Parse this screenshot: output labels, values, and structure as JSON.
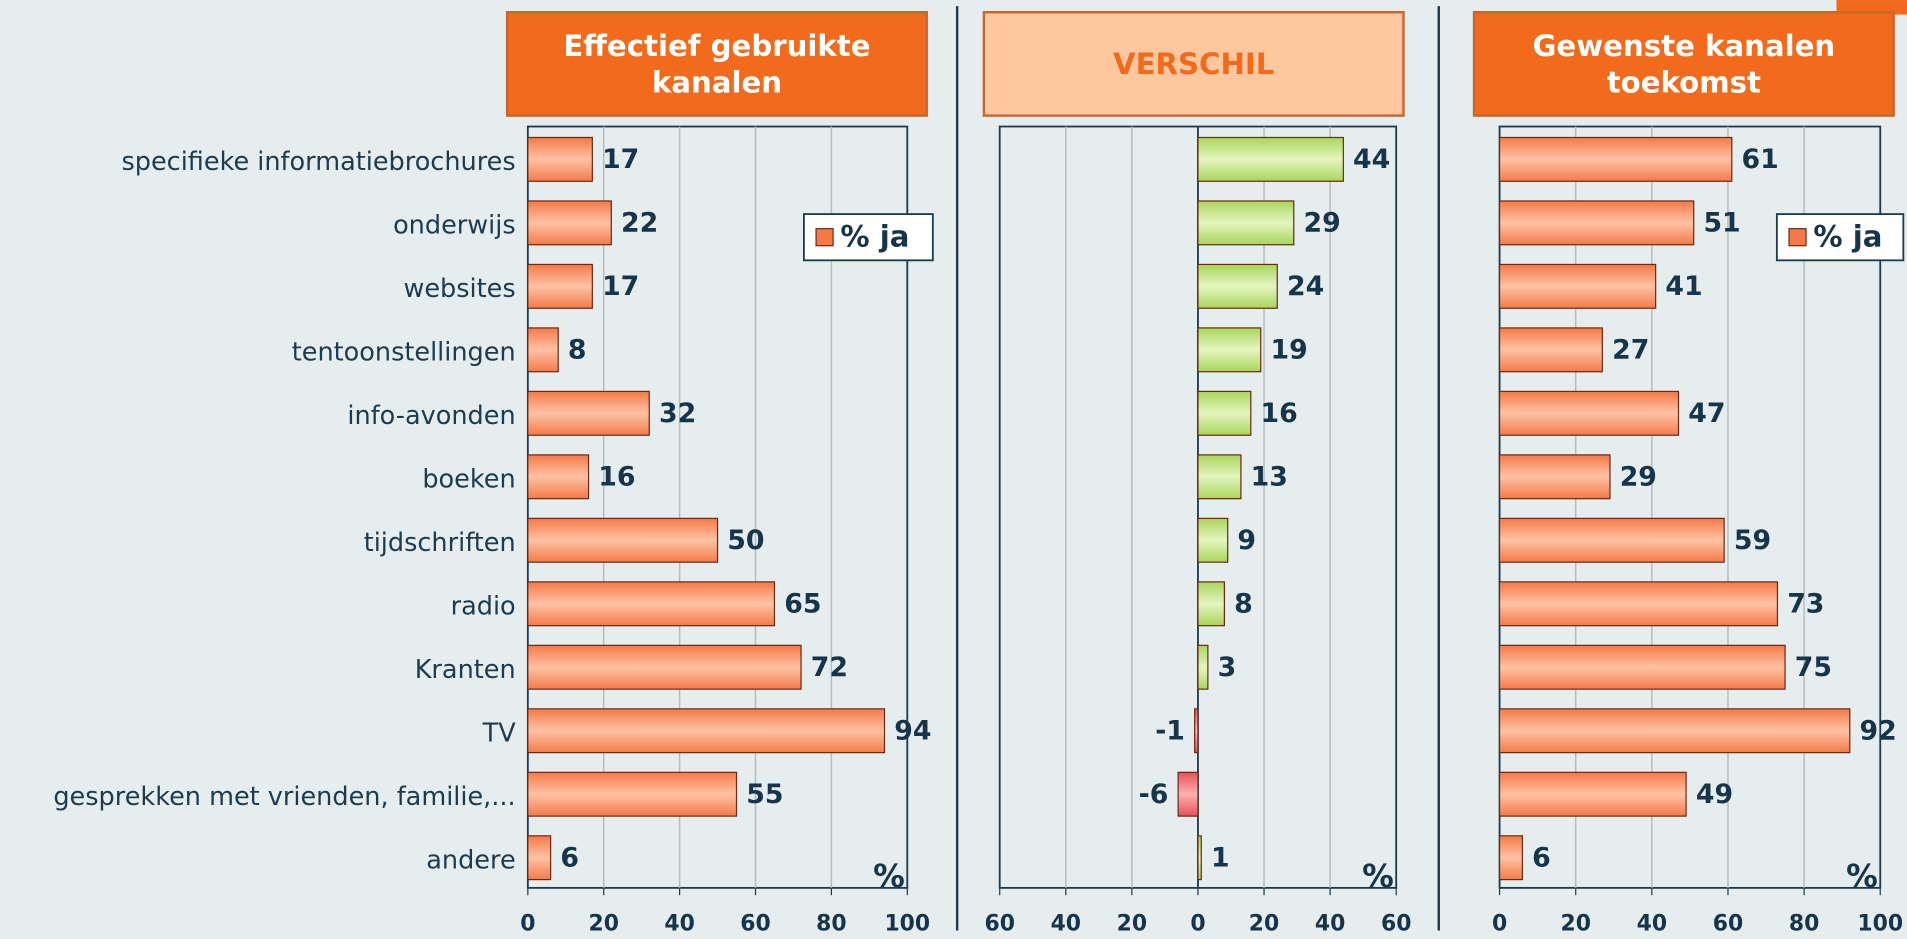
{
  "chart_data": [
    {
      "type": "bar",
      "orientation": "horizontal",
      "title": "Effectief gebruikte kanalen",
      "categories": [
        "specifieke informatiebrochures",
        "onderwijs",
        "websites",
        "tentoonstellingen",
        "info-avonden",
        "boeken",
        "tijdschriften",
        "radio",
        "Kranten",
        "TV",
        "gesprekken met vrienden, familie,...",
        "andere"
      ],
      "series": [
        {
          "name": "% ja",
          "color": "#f47a48",
          "values": [
            17,
            22,
            17,
            8,
            32,
            16,
            50,
            65,
            72,
            94,
            55,
            6
          ]
        }
      ],
      "xlim": [
        0,
        100
      ],
      "xticks": [
        0,
        20,
        40,
        60,
        80,
        100
      ],
      "unit_label": "%",
      "grid": true,
      "legend": "upper right"
    },
    {
      "type": "bar",
      "orientation": "horizontal",
      "title": "VERSCHIL",
      "series": [
        {
          "color": "#a8d65a",
          "negative_color": "#e8505a",
          "values": [
            44,
            29,
            24,
            19,
            16,
            13,
            9,
            8,
            3,
            -1,
            -6,
            1
          ]
        }
      ],
      "xlim": [
        -60,
        60
      ],
      "xticks": [
        {
          "value": -60,
          "label": "60"
        },
        {
          "value": -40,
          "label": "40"
        },
        {
          "value": -20,
          "label": "20"
        },
        0,
        20,
        40,
        60
      ],
      "unit_label": "%",
      "grid": true
    },
    {
      "type": "bar",
      "orientation": "horizontal",
      "title": "Gewenste kanalen toekomst",
      "series": [
        {
          "name": "% ja",
          "color": "#f47a48",
          "values": [
            61,
            51,
            41,
            27,
            47,
            29,
            59,
            73,
            75,
            92,
            49,
            6
          ]
        }
      ],
      "xlim": [
        0,
        100
      ],
      "xticks": [
        0,
        20,
        40,
        60,
        80,
        100
      ],
      "unit_label": "%",
      "grid": true,
      "legend": "upper right"
    }
  ]
}
